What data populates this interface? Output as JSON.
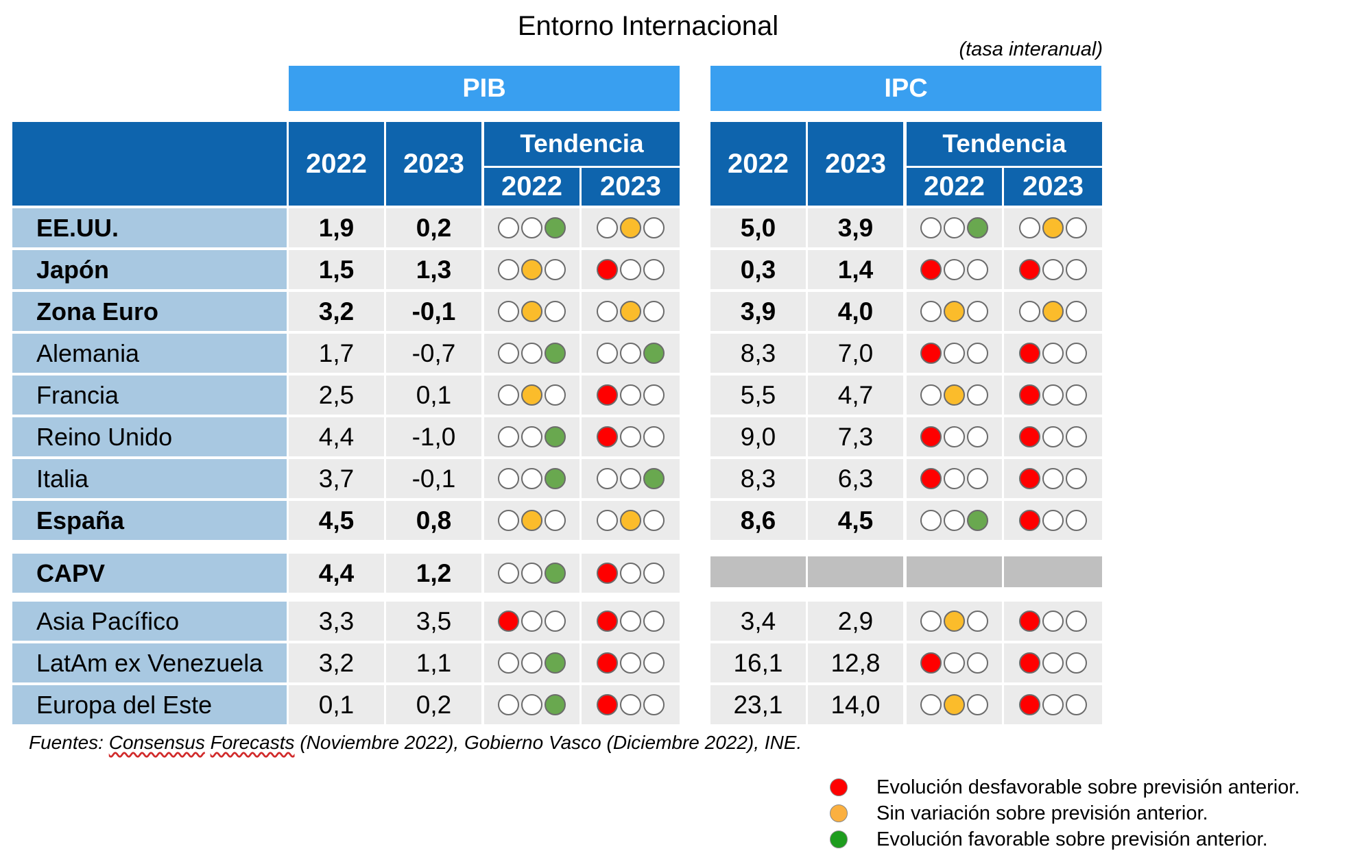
{
  "title": "Entorno Internacional",
  "subtitle": "(tasa interanual)",
  "groups": {
    "pib": "PIB",
    "ipc": "IPC"
  },
  "headers": {
    "y2022": "2022",
    "y2023": "2023",
    "tendencia": "Tendencia"
  },
  "colors": {
    "red": "#ff0000",
    "amber": "#fbbc2b",
    "green": "#69a84f",
    "header": "#0e64ad",
    "topbar": "#399ff0",
    "label_bg": "#a8c8e1"
  },
  "rows": [
    {
      "name": "EE.UU.",
      "bold": true,
      "pib": [
        "1,9",
        "0,2"
      ],
      "pib_trend": [
        "green",
        "amber"
      ],
      "ipc": [
        "5,0",
        "3,9"
      ],
      "ipc_trend": [
        "green",
        "amber"
      ]
    },
    {
      "name": "Japón",
      "bold": true,
      "pib": [
        "1,5",
        "1,3"
      ],
      "pib_trend": [
        "amber",
        "red"
      ],
      "ipc": [
        "0,3",
        "1,4"
      ],
      "ipc_trend": [
        "red",
        "red"
      ]
    },
    {
      "name": "Zona Euro",
      "bold": true,
      "pib": [
        "3,2",
        "-0,1"
      ],
      "pib_trend": [
        "amber",
        "amber"
      ],
      "ipc": [
        "3,9",
        "4,0"
      ],
      "ipc_trend": [
        "amber",
        "amber"
      ]
    },
    {
      "name": "Alemania",
      "bold": false,
      "pib": [
        "1,7",
        "-0,7"
      ],
      "pib_trend": [
        "green",
        "green"
      ],
      "ipc": [
        "8,3",
        "7,0"
      ],
      "ipc_trend": [
        "red",
        "red"
      ]
    },
    {
      "name": "Francia",
      "bold": false,
      "pib": [
        "2,5",
        "0,1"
      ],
      "pib_trend": [
        "amber",
        "red"
      ],
      "ipc": [
        "5,5",
        "4,7"
      ],
      "ipc_trend": [
        "amber",
        "red"
      ]
    },
    {
      "name": "Reino Unido",
      "bold": false,
      "pib": [
        "4,4",
        "-1,0"
      ],
      "pib_trend": [
        "green",
        "red"
      ],
      "ipc": [
        "9,0",
        "7,3"
      ],
      "ipc_trend": [
        "red",
        "red"
      ]
    },
    {
      "name": "Italia",
      "bold": false,
      "pib": [
        "3,7",
        "-0,1"
      ],
      "pib_trend": [
        "green",
        "green"
      ],
      "ipc": [
        "8,3",
        "6,3"
      ],
      "ipc_trend": [
        "red",
        "red"
      ]
    },
    {
      "name": "España",
      "bold": true,
      "pib": [
        "4,5",
        "0,8"
      ],
      "pib_trend": [
        "amber",
        "amber"
      ],
      "ipc": [
        "8,6",
        "4,5"
      ],
      "ipc_trend": [
        "green",
        "red"
      ]
    },
    {
      "name": "CAPV",
      "bold": true,
      "pib": [
        "4,4",
        "1,2"
      ],
      "pib_trend": [
        "green",
        "red"
      ],
      "ipc": null,
      "ipc_trend": null
    },
    {
      "name": "Asia Pacífico",
      "bold": false,
      "pib": [
        "3,3",
        "3,5"
      ],
      "pib_trend": [
        "red",
        "red"
      ],
      "ipc": [
        "3,4",
        "2,9"
      ],
      "ipc_trend": [
        "amber",
        "red"
      ]
    },
    {
      "name": "LatAm ex Venezuela",
      "bold": false,
      "pib": [
        "3,2",
        "1,1"
      ],
      "pib_trend": [
        "green",
        "red"
      ],
      "ipc": [
        "16,1",
        "12,8"
      ],
      "ipc_trend": [
        "red",
        "red"
      ]
    },
    {
      "name": "Europa del Este",
      "bold": false,
      "pib": [
        "0,1",
        "0,2"
      ],
      "pib_trend": [
        "green",
        "red"
      ],
      "ipc": [
        "23,1",
        "14,0"
      ],
      "ipc_trend": [
        "amber",
        "red"
      ]
    }
  ],
  "source": {
    "prefix": "Fuentes: ",
    "part1": "Consensus",
    "space": " ",
    "part2": "Forecasts",
    "suffix": " (Noviembre 2022), Gobierno Vasco (Diciembre 2022), INE."
  },
  "legend": [
    {
      "color": "#ff0000",
      "text": "Evolución desfavorable sobre previsión anterior."
    },
    {
      "color": "#fbb040",
      "text": "Sin variación sobre previsión anterior."
    },
    {
      "color": "#1e9d1e",
      "text": "Evolución favorable sobre previsión anterior."
    }
  ]
}
